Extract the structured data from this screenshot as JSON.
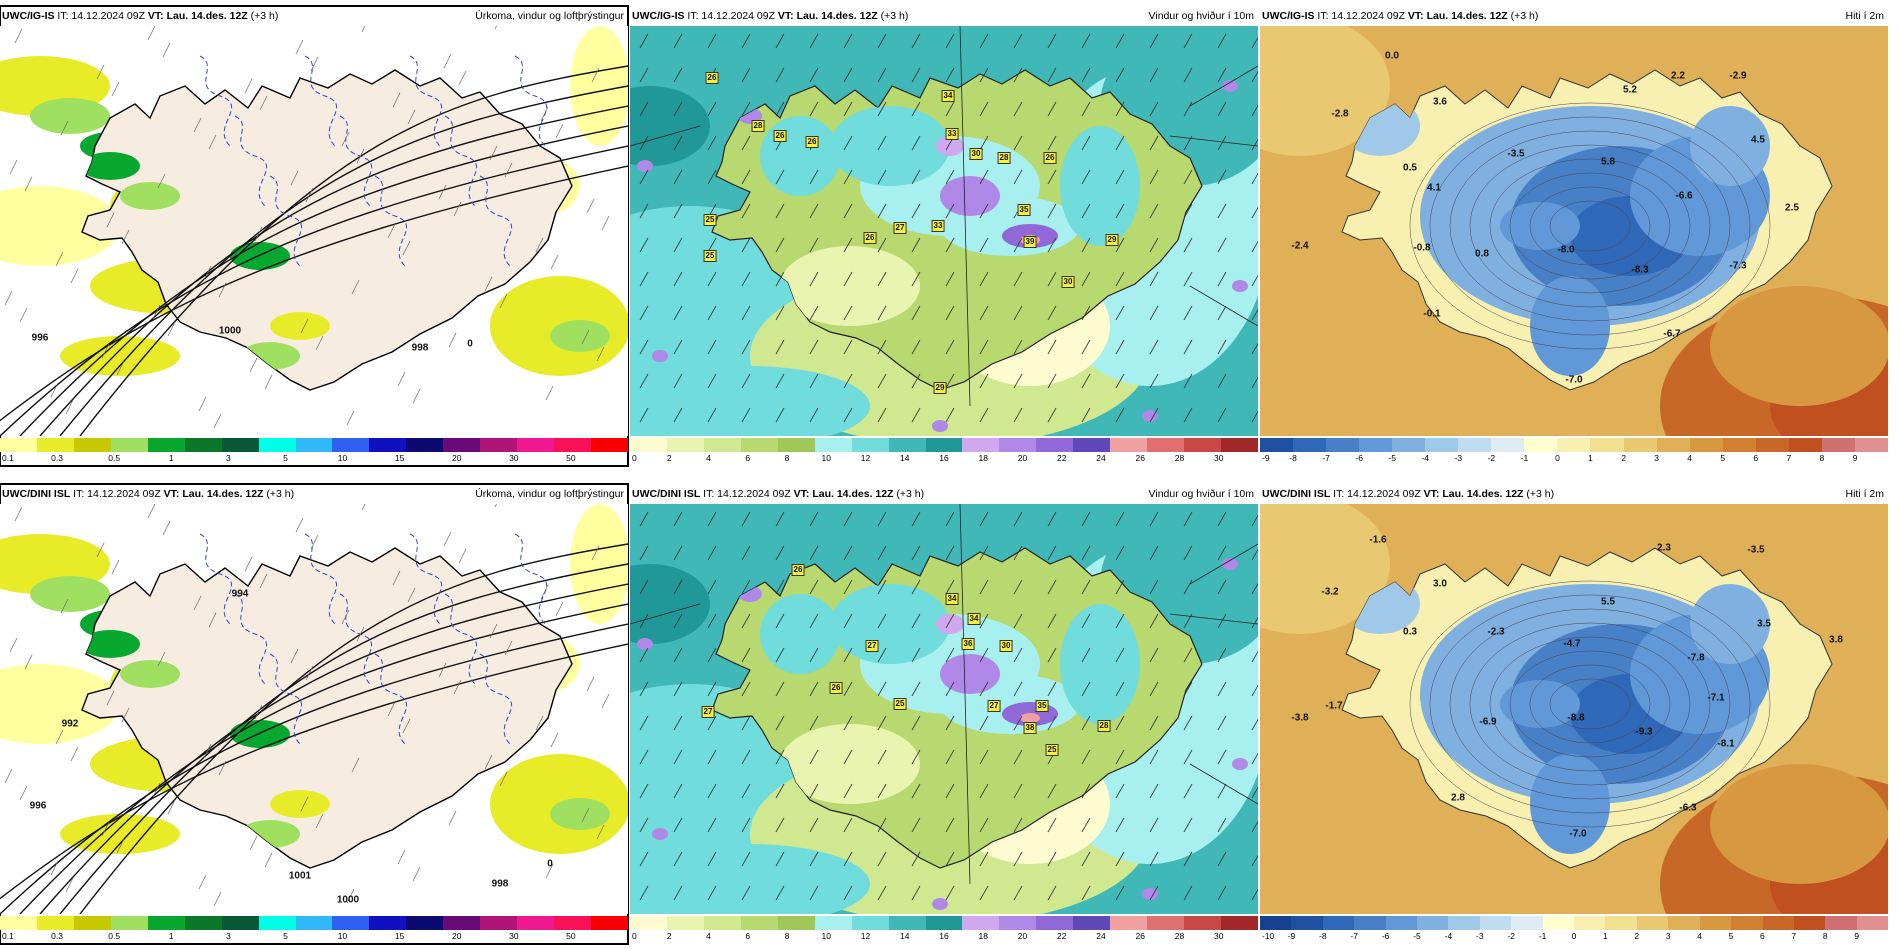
{
  "panels": [
    {
      "model": "UWC/IG-IS",
      "it": "IT: 14.12.2024 09Z",
      "vt_label": "VT:",
      "vt": "Lau. 14.des. 12Z",
      "lead": "(+3 h)",
      "title": "Úrkoma, vindur og loftþrýstingur",
      "kind": "precip",
      "colors": [
        "#ffffa0",
        "#e8ec28",
        "#c8c800",
        "#a0e060",
        "#08a830",
        "#0a7828",
        "#085838",
        "#00ffe8",
        "#30b8f8",
        "#3060f0",
        "#1010c0",
        "#0a0a70",
        "#6a0a78",
        "#b01478",
        "#f01890",
        "#f81058",
        "#f80000"
      ],
      "ticks": [
        "0.1",
        "0.3",
        "0.5",
        "1",
        "3",
        "5",
        "10",
        "15",
        "20",
        "30",
        "50"
      ],
      "labels": [
        {
          "t": "1000"
        },
        {
          "t": "996"
        },
        {
          "t": "998"
        },
        {
          "t": "0"
        }
      ]
    },
    {
      "model": "UWC/IG-IS",
      "it": "IT: 14.12.2024 09Z",
      "vt_label": "VT:",
      "vt": "Lau. 14.des. 12Z",
      "lead": "(+3 h)",
      "title": "Vindur og hviður í 10m",
      "kind": "wind",
      "colors": [
        "#fcfcd0",
        "#e8f4b0",
        "#d0e890",
        "#b8d870",
        "#a0c858",
        "#a8f0f0",
        "#70dcdc",
        "#40b8b8",
        "#209898",
        "#d0a8f0",
        "#b088e8",
        "#9068d8",
        "#6048b8",
        "#f0a0a0",
        "#e07070",
        "#c84848",
        "#a02828"
      ],
      "ticks": [
        "0",
        "2",
        "4",
        "6",
        "8",
        "10",
        "12",
        "14",
        "16",
        "18",
        "20",
        "22",
        "24",
        "26",
        "28",
        "30"
      ],
      "labels": [
        {
          "t": "26"
        },
        {
          "t": "28"
        },
        {
          "t": "26"
        },
        {
          "t": "26"
        },
        {
          "t": "34"
        },
        {
          "t": "33"
        },
        {
          "t": "30"
        },
        {
          "t": "28"
        },
        {
          "t": "26"
        },
        {
          "t": "25"
        },
        {
          "t": "26"
        },
        {
          "t": "27"
        },
        {
          "t": "33"
        },
        {
          "t": "35"
        },
        {
          "t": "39"
        },
        {
          "t": "29"
        },
        {
          "t": "30"
        },
        {
          "t": "29"
        },
        {
          "t": "25"
        }
      ]
    },
    {
      "model": "UWC/IG-IS",
      "it": "IT: 14.12.2024 09Z",
      "vt_label": "VT:",
      "vt": "Lau. 14.des. 12Z",
      "lead": "(+3 h)",
      "title": "Hiti í 2m",
      "kind": "temp",
      "colors": [
        "#2050a0",
        "#3068b8",
        "#4880c8",
        "#6098d8",
        "#80b0e0",
        "#a0c8e8",
        "#c0dcf0",
        "#e0ecf4",
        "#ffffd0",
        "#f8f0b0",
        "#f0e090",
        "#e8c870",
        "#e0b058",
        "#d89840",
        "#d08030",
        "#c86828",
        "#c05020",
        "#d07070",
        "#e09090"
      ],
      "ticks": [
        "-9",
        "-8",
        "-7",
        "-6",
        "-5",
        "-4",
        "-3",
        "-2",
        "-1",
        "0",
        "1",
        "2",
        "3",
        "4",
        "5",
        "6",
        "7",
        "8",
        "9"
      ],
      "labels": [
        {
          "t": "0.0"
        },
        {
          "t": "5.2"
        },
        {
          "t": "2.2"
        },
        {
          "t": "-2.9"
        },
        {
          "t": "-2.8"
        },
        {
          "t": "3.6"
        },
        {
          "t": "-3.5"
        },
        {
          "t": "4.5"
        },
        {
          "t": "0.5"
        },
        {
          "t": "5.8"
        },
        {
          "t": "4.1"
        },
        {
          "t": "-6.6"
        },
        {
          "t": "2.5"
        },
        {
          "t": "-2.4"
        },
        {
          "t": "-0.8"
        },
        {
          "t": "0.8"
        },
        {
          "t": "-8.0"
        },
        {
          "t": "-8.3"
        },
        {
          "t": "-7.3"
        },
        {
          "t": "-0.1"
        },
        {
          "t": "-6.7"
        },
        {
          "t": "-7.0"
        }
      ]
    },
    {
      "model": "UWC/DINI ISL",
      "it": "IT: 14.12.2024 09Z",
      "vt_label": "VT:",
      "vt": "Lau. 14.des. 12Z",
      "lead": "(+3 h)",
      "title": "Úrkoma, vindur og loftþrýstingur",
      "kind": "precip",
      "colors": [
        "#ffffa0",
        "#e8ec28",
        "#c8c800",
        "#a0e060",
        "#08a830",
        "#0a7828",
        "#085838",
        "#00ffe8",
        "#30b8f8",
        "#3060f0",
        "#1010c0",
        "#0a0a70",
        "#6a0a78",
        "#b01478",
        "#f01890",
        "#f81058",
        "#f80000"
      ],
      "ticks": [
        "0.1",
        "0.3",
        "0.5",
        "1",
        "3",
        "5",
        "10",
        "15",
        "20",
        "30",
        "50"
      ],
      "labels": [
        {
          "t": "994"
        },
        {
          "t": "992"
        },
        {
          "t": "996"
        },
        {
          "t": "1001"
        },
        {
          "t": "1000"
        },
        {
          "t": "998"
        },
        {
          "t": "0"
        }
      ]
    },
    {
      "model": "UWC/DINI ISL",
      "it": "IT: 14.12.2024 09Z",
      "vt_label": "VT:",
      "vt": "Lau. 14.des. 12Z",
      "lead": "(+3 h)",
      "title": "Vindur og hviður í 10m",
      "kind": "wind",
      "colors": [
        "#fcfcd0",
        "#e8f4b0",
        "#d0e890",
        "#b8d870",
        "#a0c858",
        "#a8f0f0",
        "#70dcdc",
        "#40b8b8",
        "#209898",
        "#d0a8f0",
        "#b088e8",
        "#9068d8",
        "#6048b8",
        "#f0a0a0",
        "#e07070",
        "#c84848",
        "#a02828"
      ],
      "ticks": [
        "0",
        "2",
        "4",
        "6",
        "8",
        "10",
        "12",
        "14",
        "16",
        "18",
        "20",
        "22",
        "24",
        "26",
        "28",
        "30"
      ],
      "labels": [
        {
          "t": "26"
        },
        {
          "t": "34"
        },
        {
          "t": "34"
        },
        {
          "t": "36"
        },
        {
          "t": "30"
        },
        {
          "t": "27"
        },
        {
          "t": "25"
        },
        {
          "t": "27"
        },
        {
          "t": "26"
        },
        {
          "t": "27"
        },
        {
          "t": "35"
        },
        {
          "t": "38"
        },
        {
          "t": "28"
        },
        {
          "t": "25"
        }
      ]
    },
    {
      "model": "UWC/DINI ISL",
      "it": "IT: 14.12.2024 09Z",
      "vt_label": "VT:",
      "vt": "Lau. 14.des. 12Z",
      "lead": "(+3 h)",
      "title": "Hiti í 2m",
      "kind": "temp",
      "colors": [
        "#184090",
        "#2050a0",
        "#3068b8",
        "#4880c8",
        "#6098d8",
        "#80b0e0",
        "#a0c8e8",
        "#c0dcf0",
        "#e0ecf4",
        "#ffffd0",
        "#f8f0b0",
        "#f0e090",
        "#e8c870",
        "#e0b058",
        "#d89840",
        "#d08030",
        "#c86828",
        "#c05020",
        "#d07070",
        "#e09090"
      ],
      "ticks": [
        "-10",
        "-9",
        "-8",
        "-7",
        "-6",
        "-5",
        "-4",
        "-3",
        "-2",
        "-1",
        "0",
        "1",
        "2",
        "3",
        "4",
        "5",
        "6",
        "7",
        "8",
        "9"
      ],
      "labels": [
        {
          "t": "-1.6"
        },
        {
          "t": "2.3"
        },
        {
          "t": "-3.5"
        },
        {
          "t": "-3.2"
        },
        {
          "t": "3.0"
        },
        {
          "t": "5.5"
        },
        {
          "t": "0.3"
        },
        {
          "t": "-2.3"
        },
        {
          "t": "-4.7"
        },
        {
          "t": "3.5"
        },
        {
          "t": "-7.8"
        },
        {
          "t": "3.8"
        },
        {
          "t": "-1.7"
        },
        {
          "t": "-7.1"
        },
        {
          "t": "-3.8"
        },
        {
          "t": "-6.9"
        },
        {
          "t": "-8.8"
        },
        {
          "t": "-9.3"
        },
        {
          "t": "-8.1"
        },
        {
          "t": "2.8"
        },
        {
          "t": "-6.3"
        },
        {
          "t": "-7.0"
        }
      ]
    }
  ]
}
